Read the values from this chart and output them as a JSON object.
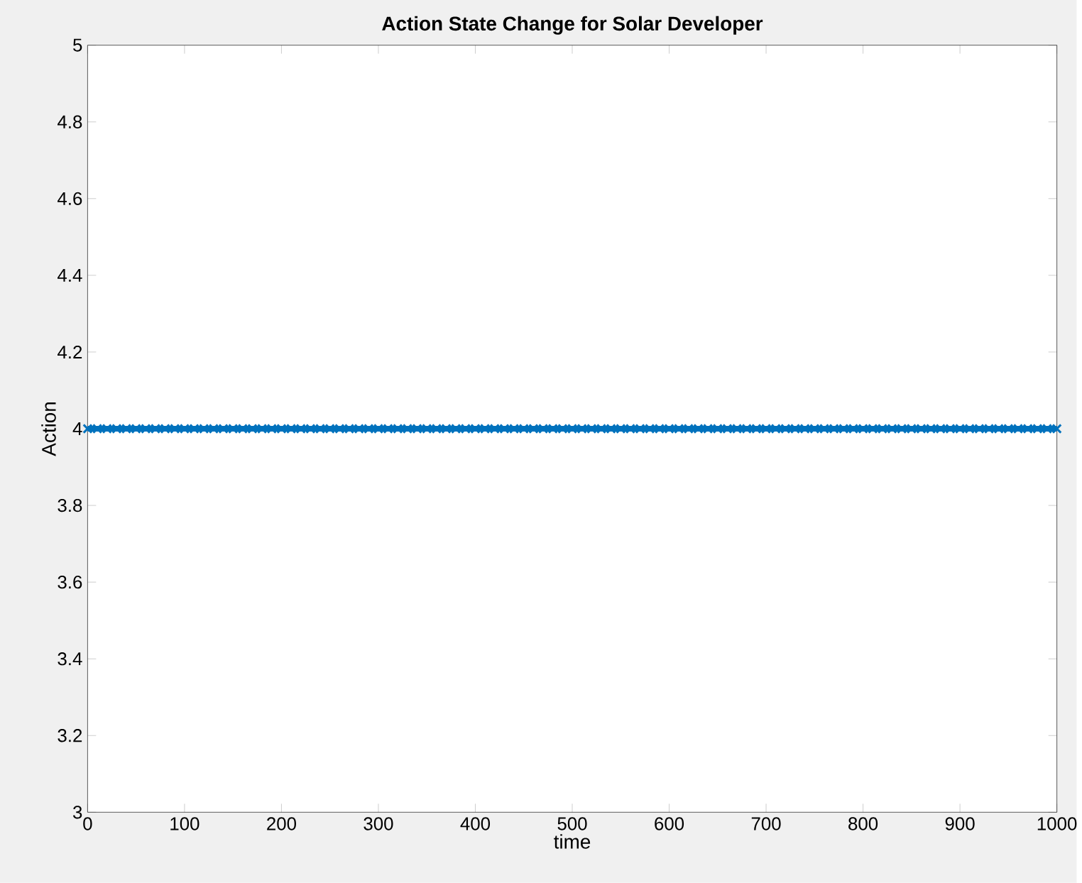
{
  "chart_data": {
    "type": "line",
    "title": "Action State Change for Solar Developer",
    "xlabel": "time",
    "ylabel": "Action",
    "x": [
      0,
      10,
      20,
      30,
      40,
      50,
      60,
      70,
      80,
      90,
      100,
      110,
      120,
      130,
      140,
      150,
      160,
      170,
      180,
      190,
      200,
      210,
      220,
      230,
      240,
      250,
      260,
      270,
      280,
      290,
      300,
      310,
      320,
      330,
      340,
      350,
      360,
      370,
      380,
      390,
      400,
      410,
      420,
      430,
      440,
      450,
      460,
      470,
      480,
      490,
      500,
      510,
      520,
      530,
      540,
      550,
      560,
      570,
      580,
      590,
      600,
      610,
      620,
      630,
      640,
      650,
      660,
      670,
      680,
      690,
      700,
      710,
      720,
      730,
      740,
      750,
      760,
      770,
      780,
      790,
      800,
      810,
      820,
      830,
      840,
      850,
      860,
      870,
      880,
      890,
      900,
      910,
      920,
      930,
      940,
      950,
      960,
      970,
      980,
      990,
      1000
    ],
    "series": [
      {
        "color": "#0072bd",
        "values": [
          4,
          4,
          4,
          4,
          4,
          4,
          4,
          4,
          4,
          4,
          4,
          4,
          4,
          4,
          4,
          4,
          4,
          4,
          4,
          4,
          4,
          4,
          4,
          4,
          4,
          4,
          4,
          4,
          4,
          4,
          4,
          4,
          4,
          4,
          4,
          4,
          4,
          4,
          4,
          4,
          4,
          4,
          4,
          4,
          4,
          4,
          4,
          4,
          4,
          4,
          4,
          4,
          4,
          4,
          4,
          4,
          4,
          4,
          4,
          4,
          4,
          4,
          4,
          4,
          4,
          4,
          4,
          4,
          4,
          4,
          4,
          4,
          4,
          4,
          4,
          4,
          4,
          4,
          4,
          4,
          4,
          4,
          4,
          4,
          4,
          4,
          4,
          4,
          4,
          4,
          4,
          4,
          4,
          4,
          4,
          4,
          4,
          4,
          4,
          4,
          4
        ]
      }
    ],
    "xlim": [
      0,
      1000
    ],
    "xticks": [
      0,
      100,
      200,
      300,
      400,
      500,
      600,
      700,
      800,
      900,
      1000
    ],
    "ylim": [
      3,
      5
    ],
    "yticks": [
      3,
      3.2,
      3.4,
      3.6,
      3.8,
      4,
      4.2,
      4.4,
      4.6,
      4.8,
      5
    ],
    "marker": "cross",
    "line_style": "solid"
  }
}
